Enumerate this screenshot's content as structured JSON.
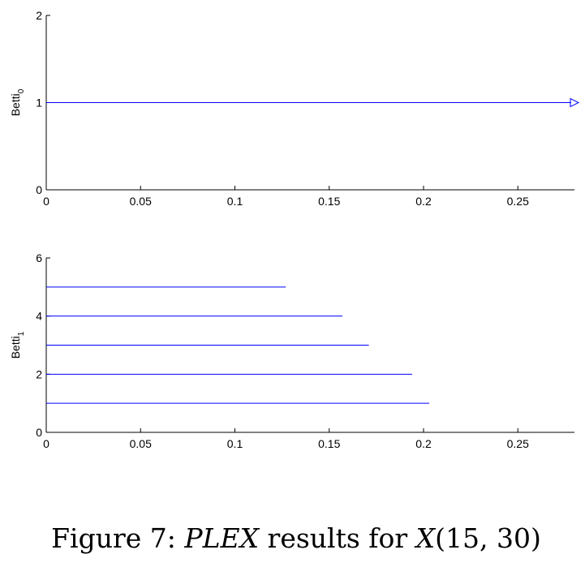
{
  "chart_data": [
    {
      "type": "barcode",
      "ylabel": {
        "text": "Betti",
        "sub": "0"
      },
      "xlim": [
        0,
        0.28
      ],
      "ylim": [
        0,
        2
      ],
      "xticks": [
        "0",
        "0.05",
        "0.1",
        "0.15",
        "0.2",
        "0.25"
      ],
      "yticks": [
        "0",
        "1",
        "2"
      ],
      "color": "#0000ff",
      "intervals": [
        {
          "y": 1,
          "start": 0,
          "end": 0.28,
          "infinite": true
        }
      ]
    },
    {
      "type": "barcode",
      "ylabel": {
        "text": "Betti",
        "sub": "1"
      },
      "xlim": [
        0,
        0.28
      ],
      "ylim": [
        0,
        6
      ],
      "xticks": [
        "0",
        "0.05",
        "0.1",
        "0.15",
        "0.2",
        "0.25"
      ],
      "yticks": [
        "0",
        "2",
        "4",
        "6"
      ],
      "color": "#0000ff",
      "intervals": [
        {
          "y": 1,
          "start": 0,
          "end": 0.203
        },
        {
          "y": 2,
          "start": 0,
          "end": 0.194
        },
        {
          "y": 3,
          "start": 0,
          "end": 0.171
        },
        {
          "y": 4,
          "start": 0,
          "end": 0.157
        },
        {
          "y": 5,
          "start": 0,
          "end": 0.127
        }
      ]
    }
  ],
  "caption": {
    "prefix": "Figure 7: ",
    "plex": "PLEX",
    "middle": " results for ",
    "x": "X",
    "args": "(15, 30)"
  }
}
